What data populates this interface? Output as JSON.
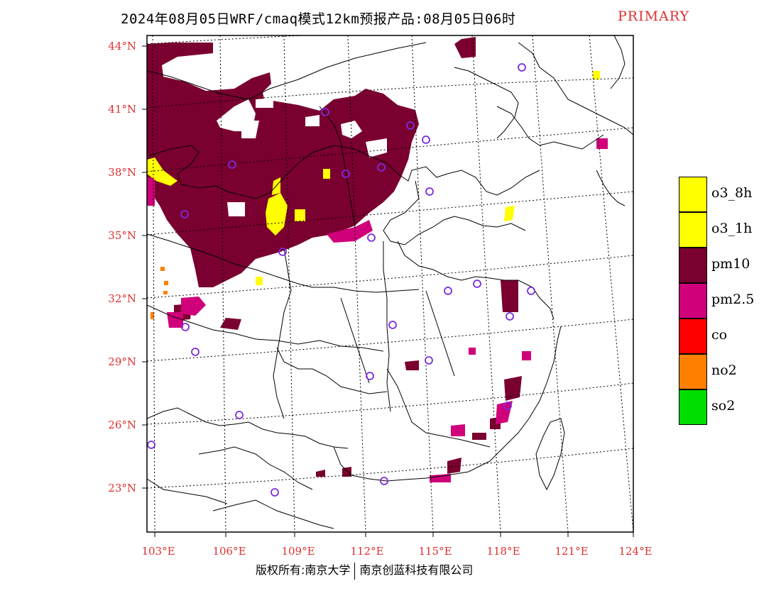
{
  "title": "2024年08月05日WRF/cmaq模式12km预报产品:08月05日06时",
  "tag": "PRIMARY",
  "latitude_labels": [
    "44°N",
    "41°N",
    "38°N",
    "35°N",
    "32°N",
    "29°N",
    "26°N",
    "23°N"
  ],
  "longitude_labels": [
    "103°E",
    "106°E",
    "109°E",
    "112°E",
    "115°E",
    "118°E",
    "121°E",
    "124°E"
  ],
  "legend": [
    {
      "label": "o3_8h",
      "color": "#ffff00"
    },
    {
      "label": "o3_1h",
      "color": "#ffff00"
    },
    {
      "label": "pm10",
      "color": "#7a0030"
    },
    {
      "label": "pm2.5",
      "color": "#d0007a"
    },
    {
      "label": "co",
      "color": "#ff0000"
    },
    {
      "label": "no2",
      "color": "#ff8000"
    },
    {
      "label": "so2",
      "color": "#00dd00"
    }
  ],
  "station_marker_color": "#7b2be0",
  "copyright": {
    "left": "版权所有:南京大学",
    "right": "南京创蓝科技有限公司"
  }
}
